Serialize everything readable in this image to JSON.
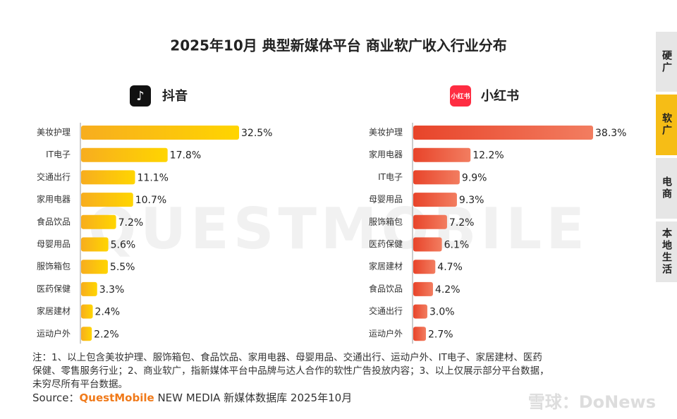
{
  "title": "2025年10月 典型新媒体平台 商业软广收入行业分布",
  "tabs": [
    "硬广",
    "软广",
    "电商",
    "本地生活"
  ],
  "active_tab": 1,
  "watermark": "QUESTMOBILE",
  "chart_data": [
    {
      "type": "bar",
      "orientation": "horizontal",
      "title": "抖音",
      "categories": [
        "美妆护理",
        "IT电子",
        "交通出行",
        "家用电器",
        "食品饮品",
        "母婴用品",
        "服饰箱包",
        "医药保健",
        "家居建材",
        "运动户外"
      ],
      "values": [
        32.5,
        17.8,
        11.1,
        10.7,
        7.2,
        5.6,
        5.5,
        3.3,
        2.4,
        2.2
      ],
      "value_labels": [
        "32.5%",
        "17.8%",
        "11.1%",
        "10.7%",
        "7.2%",
        "5.6%",
        "5.5%",
        "3.3%",
        "2.4%",
        "2.2%"
      ],
      "color": [
        "#f7ad1f",
        "#ffd500"
      ]
    },
    {
      "type": "bar",
      "orientation": "horizontal",
      "title": "小红书",
      "logo_text": "小红书",
      "categories": [
        "美妆护理",
        "家用电器",
        "IT电子",
        "母婴用品",
        "服饰箱包",
        "医药保健",
        "家居建材",
        "食品饮品",
        "交通出行",
        "运动户外"
      ],
      "values": [
        38.3,
        12.2,
        9.9,
        9.3,
        7.2,
        6.1,
        4.7,
        4.2,
        3.0,
        2.7
      ],
      "value_labels": [
        "38.3%",
        "12.2%",
        "9.9%",
        "9.3%",
        "7.2%",
        "6.1%",
        "4.7%",
        "4.2%",
        "3.0%",
        "2.7%"
      ],
      "color": [
        "#e8442a",
        "#f27d60"
      ]
    }
  ],
  "notes": [
    "注：1、以上包含美妆护理、服饰箱包、食品饮品、家用电器、母婴用品、交通出行、运动户外、IT电子、家居建材、医药",
    "保健、零售服务行业；2、商业软广，指新媒体平台中品牌与达人合作的软性广告投放内容；3、以上仅展示部分平台数据，",
    "未穷尽所有平台数据。"
  ],
  "source": {
    "label": "Source：",
    "brand": "QuestMobile",
    "text": " NEW MEDIA 新媒体数据库 2025年10月"
  },
  "credit": "雪球：DoNews"
}
